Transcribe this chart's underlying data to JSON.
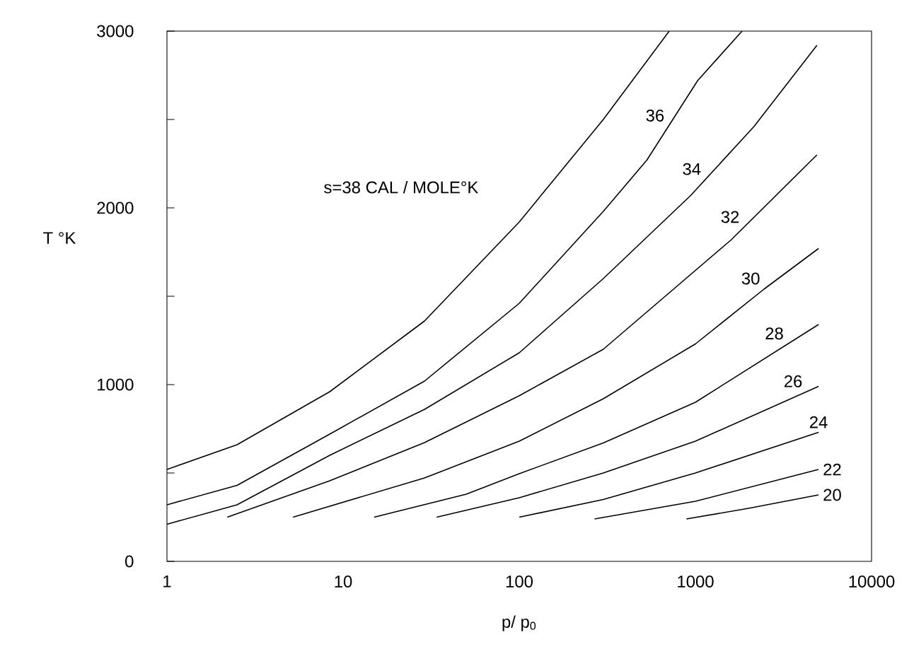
{
  "chart_data": {
    "type": "line",
    "xlabel": "p/ p$_{0}$",
    "ylabel": "T °K",
    "log": "x",
    "xlim": [
      1,
      10000
    ],
    "ylim": [
      0,
      3000
    ],
    "xticks": [
      1,
      10,
      100,
      1000,
      10000
    ],
    "yticks": [
      0,
      {
        "value": 500,
        "label": null
      },
      1000,
      {
        "value": 1500,
        "label": null
      },
      2000,
      {
        "value": 2500,
        "label": null
      },
      3000
    ],
    "series": [
      {
        "name": "s=38 CAL / MOLE°K",
        "color": "#000000",
        "x": [
          1,
          2.5,
          8.4,
          29,
          100,
          300,
          710
        ],
        "values": [
          520,
          660,
          960,
          1360,
          1920,
          2500,
          3000
        ]
      },
      {
        "name": "36",
        "color": "#000000",
        "x": [
          1,
          2.5,
          8.4,
          29,
          100,
          300,
          530,
          1030,
          1840
        ],
        "values": [
          320,
          430,
          720,
          1020,
          1460,
          1980,
          2270,
          2720,
          3000
        ]
      },
      {
        "name": "34",
        "color": "#000000",
        "x": [
          1,
          2.5,
          8.4,
          29,
          100,
          300,
          940,
          2150,
          4900
        ],
        "values": [
          210,
          320,
          600,
          860,
          1180,
          1600,
          2070,
          2460,
          2920
        ]
      },
      {
        "name": "32",
        "color": "#000000",
        "x": [
          2.2,
          8.4,
          29,
          100,
          300,
          1600,
          4900
        ],
        "values": [
          250,
          456,
          672,
          937,
          1200,
          1820,
          2300
        ]
      },
      {
        "name": "30",
        "color": "#000000",
        "x": [
          5.2,
          29,
          100,
          300,
          1000,
          2450,
          5000
        ],
        "values": [
          250,
          472,
          680,
          920,
          1230,
          1540,
          1770
        ]
      },
      {
        "name": "28",
        "color": "#000000",
        "x": [
          15,
          50,
          100,
          300,
          1000,
          5000
        ],
        "values": [
          250,
          380,
          496,
          670,
          900,
          1340
        ]
      },
      {
        "name": "26",
        "color": "#000000",
        "x": [
          34,
          100,
          300,
          1000,
          5000
        ],
        "values": [
          250,
          360,
          500,
          680,
          990
        ]
      },
      {
        "name": "24",
        "color": "#000000",
        "x": [
          100,
          300,
          1000,
          5000
        ],
        "values": [
          250,
          350,
          500,
          730
        ]
      },
      {
        "name": "22",
        "color": "#000000",
        "x": [
          268,
          1000,
          5000
        ],
        "values": [
          240,
          340,
          520
        ]
      },
      {
        "name": "20",
        "color": "#000000",
        "x": [
          890,
          2000,
          5000
        ],
        "values": [
          240,
          300,
          376
        ]
      }
    ]
  }
}
